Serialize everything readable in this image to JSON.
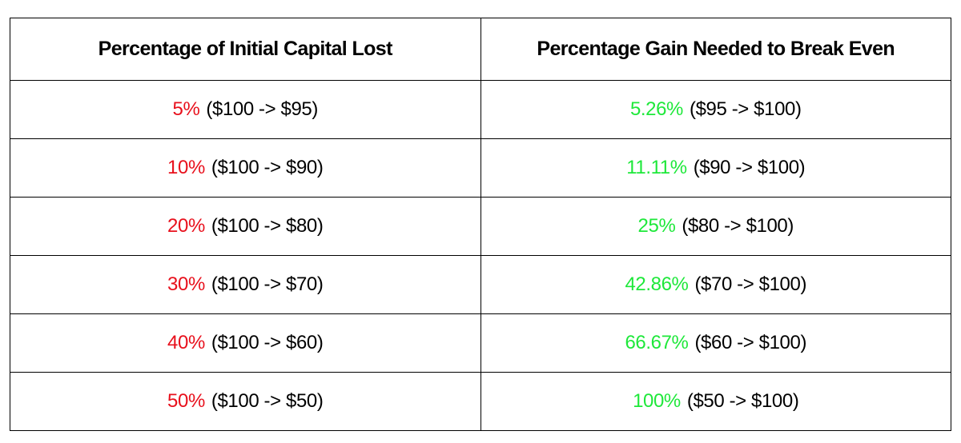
{
  "table": {
    "header": [
      "Percentage of Initial Capital Lost",
      "Percentage Gain Needed to Break Even"
    ],
    "rows": [
      [
        {
          "percent": "5%",
          "detail": "($100 -> $95)"
        },
        {
          "percent": "5.26%",
          "detail": "($95 -> $100)"
        }
      ],
      [
        {
          "percent": "10%",
          "detail": "($100 -> $90)"
        },
        {
          "percent": "11.11%",
          "detail": "($90 -> $100)"
        }
      ],
      [
        {
          "percent": "20%",
          "detail": "($100 -> $80)"
        },
        {
          "percent": "25%",
          "detail": "($80 -> $100)"
        }
      ],
      [
        {
          "percent": "30%",
          "detail": "($100 -> $70)"
        },
        {
          "percent": "42.86%",
          "detail": "($70 -> $100)"
        }
      ],
      [
        {
          "percent": "40%",
          "detail": "($100 -> $60)"
        },
        {
          "percent": "66.67%",
          "detail": "($60 -> $100)"
        }
      ],
      [
        {
          "percent": "50%",
          "detail": "($100 -> $50)"
        },
        {
          "percent": "100%",
          "detail": "($50 -> $100)"
        }
      ]
    ]
  }
}
